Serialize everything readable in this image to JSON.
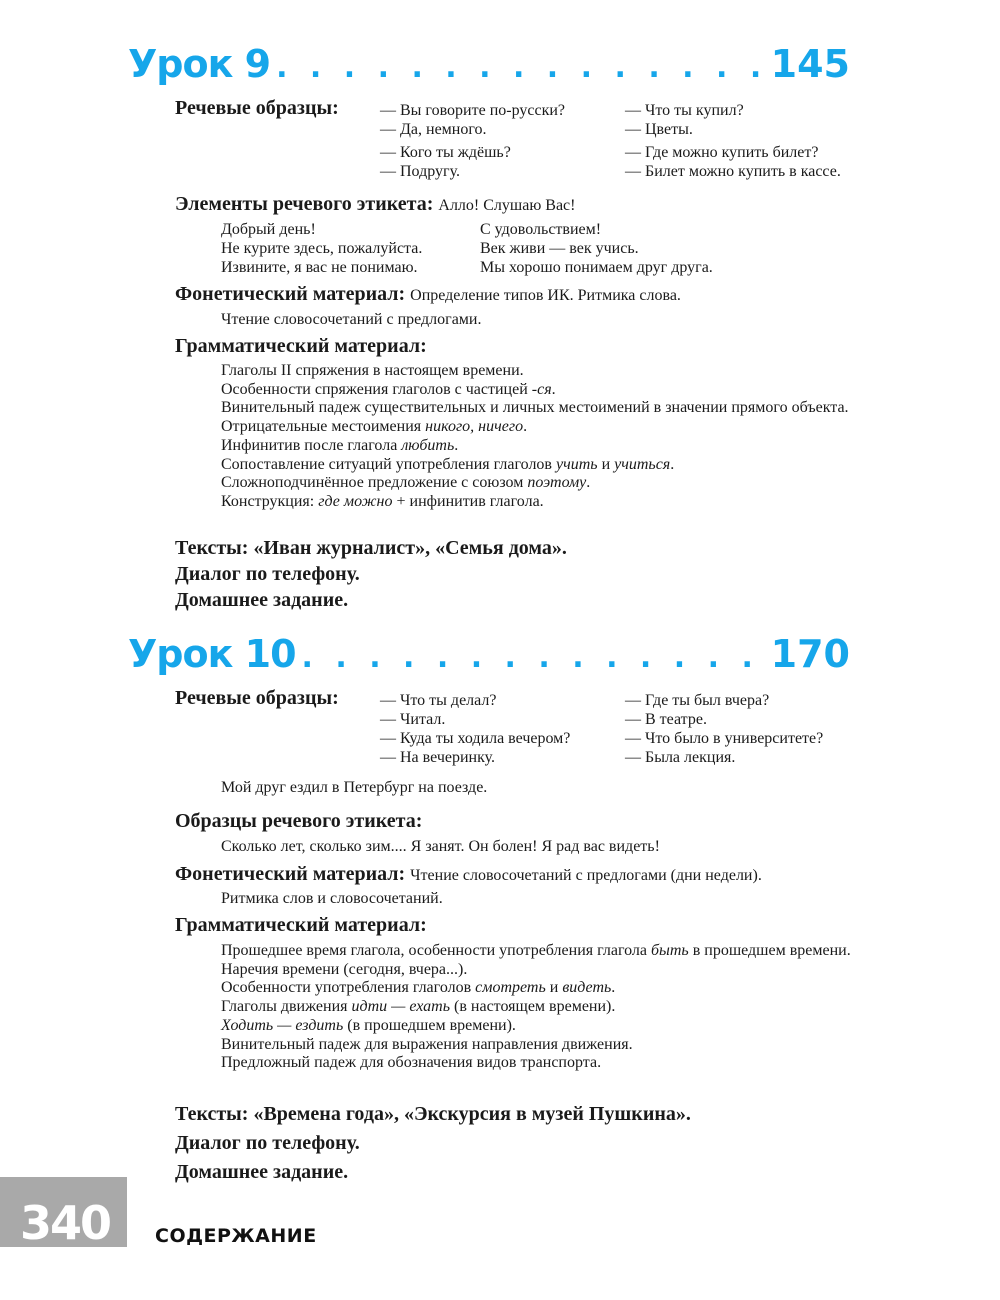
{
  "lesson9": {
    "title": "Урок 9",
    "dots": ". . . . . . . . . . . . . . . . . . . . . . . . . . . . . .",
    "page": "145",
    "speech_label": "Речевые образцы:",
    "speech_col1": [
      "— Вы говорите по-русски?",
      "— Да, немного.",
      "— Кого ты ждёшь?",
      "— Подругу."
    ],
    "speech_col2": [
      "— Что ты купил?",
      "— Цветы.",
      "— Где можно купить билет?",
      "— Билет можно купить в кассе."
    ],
    "etiquette_label": "Элементы речевого этикета:",
    "etiquette_inline": "Алло! Слушаю Вас!",
    "etiquette_col1": [
      "Добрый день!",
      "Не курите здесь, пожалуйста.",
      "Извините, я вас не понимаю."
    ],
    "etiquette_col2": [
      "С удовольствием!",
      "Век живи — век учись.",
      "Мы хорошо понимаем друг друга."
    ],
    "phonetic_label": "Фонетический материал:",
    "phonetic_inline": "Определение типов ИК. Ритмика слова.",
    "phonetic_line": "Чтение словосочетаний с предлогами.",
    "grammar_label": "Грамматический материал:",
    "grammar": [
      [
        {
          "t": "Глаголы II спряжения в настоящем времени."
        }
      ],
      [
        {
          "t": "Особенности спряжения глаголов с частицей "
        },
        {
          "t": "-ся",
          "i": true
        },
        {
          "t": "."
        }
      ],
      [
        {
          "t": "Винительный падеж существительных и личных местоимений в значении прямого объекта."
        }
      ],
      [
        {
          "t": "Отрицательные местоимения "
        },
        {
          "t": "никого, ничего",
          "i": true
        },
        {
          "t": "."
        }
      ],
      [
        {
          "t": "Инфинитив после глагола "
        },
        {
          "t": "любить",
          "i": true
        },
        {
          "t": "."
        }
      ],
      [
        {
          "t": "Сопоставление ситуаций употребления глаголов "
        },
        {
          "t": "учить",
          "i": true
        },
        {
          "t": " и "
        },
        {
          "t": "учиться",
          "i": true
        },
        {
          "t": "."
        }
      ],
      [
        {
          "t": "Сложноподчинённое предложение с союзом "
        },
        {
          "t": "поэтому",
          "i": true
        },
        {
          "t": "."
        }
      ],
      [
        {
          "t": "Конструкция: "
        },
        {
          "t": "где можно",
          "i": true
        },
        {
          "t": " + инфинитив глагола."
        }
      ]
    ],
    "texts": "Тексты: «Иван журналист», «Семья дома».",
    "dialog": "Диалог по телефону.",
    "homework": "Домашнее задание."
  },
  "lesson10": {
    "title": "Урок 10",
    "dots": ". . . . . . . . . . . . . . . . . . . . . . . . . . . . . .",
    "page": "170",
    "speech_label": "Речевые образцы:",
    "speech_col1": [
      "— Что ты делал?",
      "— Читал.",
      "— Куда ты ходила вечером?",
      "— На вечеринку."
    ],
    "speech_col2": [
      "— Где ты был вчера?",
      "— В театре.",
      "— Что было в университете?",
      "— Была лекция."
    ],
    "speech_extra": "Мой друг ездил в Петербург на поезде.",
    "etiquette_label": "Образцы речевого этикета:",
    "etiquette_line": "Сколько лет, сколько зим.... Я занят. Он болен! Я рад вас видеть!",
    "phonetic_label": "Фонетический материал:",
    "phonetic_inline": "Чтение словосочетаний с предлогами (дни недели).",
    "phonetic_line": "Ритмика слов и словосочетаний.",
    "grammar_label": "Грамматический материал:",
    "grammar": [
      [
        {
          "t": "Прошедшее время глагола, особенности употребления глагола "
        },
        {
          "t": "быть",
          "i": true
        },
        {
          "t": " в прошедшем времени."
        }
      ],
      [
        {
          "t": "Наречия времени (сегодня, вчера...)."
        }
      ],
      [
        {
          "t": "Особенности употребления глаголов "
        },
        {
          "t": "смотреть",
          "i": true
        },
        {
          "t": " и "
        },
        {
          "t": "видеть",
          "i": true
        },
        {
          "t": "."
        }
      ],
      [
        {
          "t": "Глаголы движения "
        },
        {
          "t": "идти — ехать",
          "i": true
        },
        {
          "t": " (в настоящем времени)."
        }
      ],
      [
        {
          "t": "Ходить — ездить",
          "i": true
        },
        {
          "t": " (в прошедшем времени)."
        }
      ],
      [
        {
          "t": "Винительный падеж для выражения направления движения."
        }
      ],
      [
        {
          "t": "Предложный падеж для обозначения видов транспорта."
        }
      ]
    ],
    "texts": "Тексты: «Времена года», «Экскурсия в музей Пушкина».",
    "dialog": "Диалог по телефону.",
    "homework": "Домашнее задание."
  },
  "footer": {
    "page_number": "340",
    "section": "СОДЕРЖАНИЕ"
  },
  "colors": {
    "accent": "#16a6ea",
    "page_box": "#a9a9a9"
  }
}
